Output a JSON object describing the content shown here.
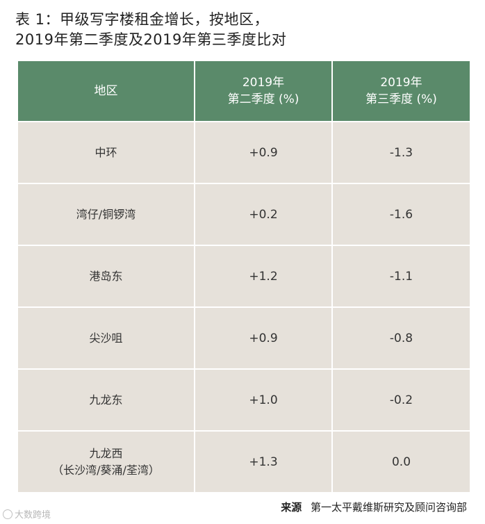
{
  "title": {
    "line1": "表 1：甲级写字楼租金增长，按地区，",
    "line2": "2019年第二季度及2019年第三季度比对"
  },
  "table": {
    "headers": {
      "region": "地区",
      "q2_year": "2019年",
      "q2_label": "第二季度 (%)",
      "q3_year": "2019年",
      "q3_label": "第三季度 (%)"
    },
    "rows": [
      {
        "region": "中环",
        "region_sub": "",
        "q2": "+0.9",
        "q3": "-1.3"
      },
      {
        "region": "湾仔/铜锣湾",
        "region_sub": "",
        "q2": "+0.2",
        "q3": "-1.6"
      },
      {
        "region": "港岛东",
        "region_sub": "",
        "q2": "+1.2",
        "q3": "-1.1"
      },
      {
        "region": "尖沙咀",
        "region_sub": "",
        "q2": "+0.9",
        "q3": "-0.8"
      },
      {
        "region": "九龙东",
        "region_sub": "",
        "q2": "+1.0",
        "q3": "-0.2"
      },
      {
        "region": "九龙西",
        "region_sub": "（长沙湾/葵涌/荃湾）",
        "q2": "+1.3",
        "q3": "0.0"
      }
    ]
  },
  "source": {
    "label": "来源",
    "text": "第一太平戴维斯研究及顾问咨询部"
  },
  "watermark": {
    "text": "大数跨境"
  },
  "colors": {
    "header_bg": "#5a8a6a",
    "cell_bg": "#e6e1da"
  }
}
